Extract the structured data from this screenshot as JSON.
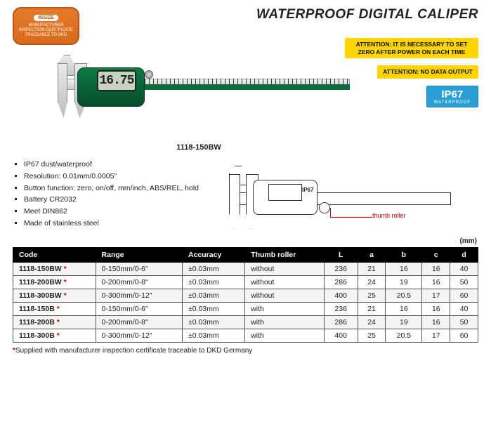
{
  "title": "WATERPROOF DIGITAL CALIPER",
  "cert_badge": {
    "brand": "INSIZE",
    "line1": "MANUFACTURER",
    "line2": "INSPECTION CERTIFICATE",
    "line3": "TRACEABLE TO DKD"
  },
  "attention1": "ATTENTION: IT IS NECESSARY TO SET ZERO AFTER POWER ON EACH TIME",
  "attention2": "ATTENTION: NO DATA OUTPUT",
  "ip67": {
    "main": "IP67",
    "sub": "WATERPROOF"
  },
  "caliper": {
    "lcd": "16.75",
    "model": "1118-150BW"
  },
  "bullets": [
    "IP67 dust/waterproof",
    "Resolution: 0.01mm/0.0005\"",
    "Button function: zero, on/off, mm/inch, ABS/REL, hold",
    "Battery CR2032",
    "Meet DIN862",
    "Made of stainless steel"
  ],
  "diagram": {
    "ip67_text": "IP67",
    "callout": "thumb roller"
  },
  "unit_label": "(mm)",
  "table": {
    "columns": [
      "Code",
      "Range",
      "Accuracy",
      "Thumb roller",
      "L",
      "a",
      "b",
      "c",
      "d"
    ],
    "rows": [
      {
        "code": "1118-150BW",
        "star": true,
        "range": "0-150mm/0-6\"",
        "acc": "±0.03mm",
        "roller": "without",
        "L": "236",
        "a": "21",
        "b": "16",
        "c": "16",
        "d": "40"
      },
      {
        "code": "1118-200BW",
        "star": true,
        "range": "0-200mm/0-8\"",
        "acc": "±0.03mm",
        "roller": "without",
        "L": "286",
        "a": "24",
        "b": "19",
        "c": "16",
        "d": "50"
      },
      {
        "code": "1118-300BW",
        "star": true,
        "range": "0-300mm/0-12\"",
        "acc": "±0.03mm",
        "roller": "without",
        "L": "400",
        "a": "25",
        "b": "20.5",
        "c": "17",
        "d": "60"
      },
      {
        "code": "1118-150B",
        "star": true,
        "range": "0-150mm/0-6\"",
        "acc": "±0.03mm",
        "roller": "with",
        "L": "236",
        "a": "21",
        "b": "16",
        "c": "16",
        "d": "40"
      },
      {
        "code": "1118-200B",
        "star": true,
        "range": "0-200mm/0-8\"",
        "acc": "±0.03mm",
        "roller": "with",
        "L": "286",
        "a": "24",
        "b": "19",
        "c": "16",
        "d": "50"
      },
      {
        "code": "1118-300B",
        "star": true,
        "range": "0-300mm/0-12\"",
        "acc": "±0.03mm",
        "roller": "with",
        "L": "400",
        "a": "25",
        "b": "20.5",
        "c": "17",
        "d": "60"
      }
    ]
  },
  "footnote": "Supplied with manufacturer inspection certificate traceable to DKD Germany",
  "star_glyph": "*"
}
